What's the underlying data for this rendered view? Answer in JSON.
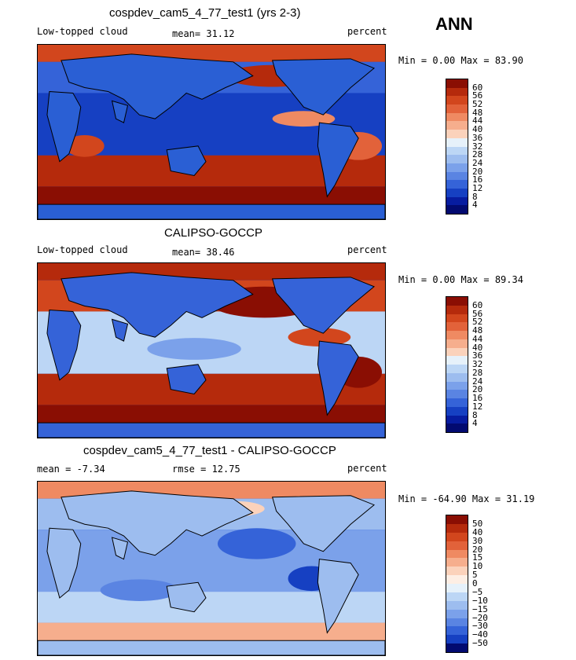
{
  "season": "ANN",
  "chart_data": [
    {
      "type": "heatmap",
      "title": "cospdev_cam5_4_77_test1 (yrs 2-3)",
      "left_label": "Low-topped cloud",
      "center_label": "mean=  31.12",
      "right_label": "percent",
      "minmax_label": "Min =   0.00 Max =  83.90",
      "mean": 31.12,
      "min": 0.0,
      "max": 83.9,
      "units": "percent",
      "contour_levels": [
        "60",
        "56",
        "52",
        "48",
        "44",
        "40",
        "36",
        "32",
        "28",
        "24",
        "20",
        "16",
        "12",
        "8",
        "4"
      ],
      "colors": [
        "#8a0e03",
        "#b52a0c",
        "#d2461d",
        "#e2623a",
        "#ef8a62",
        "#f6ae8d",
        "#fbd2bb",
        "#e6f1fa",
        "#bcd6f5",
        "#9dbdef",
        "#7ba1ea",
        "#5a84e2",
        "#3563d8",
        "#1640c2",
        "#071ca0",
        "#020a70"
      ]
    },
    {
      "type": "heatmap",
      "title": "CALIPSO-GOCCP",
      "left_label": "Low-topped cloud",
      "center_label": "mean=  38.46",
      "right_label": "percent",
      "minmax_label": "Min =   0.00 Max =  89.34",
      "mean": 38.46,
      "min": 0.0,
      "max": 89.34,
      "units": "percent",
      "contour_levels": [
        "60",
        "56",
        "52",
        "48",
        "44",
        "40",
        "36",
        "32",
        "28",
        "24",
        "20",
        "16",
        "12",
        "8",
        "4"
      ],
      "colors": [
        "#8a0e03",
        "#b52a0c",
        "#d2461d",
        "#e2623a",
        "#ef8a62",
        "#f6ae8d",
        "#fbd2bb",
        "#e6f1fa",
        "#bcd6f5",
        "#9dbdef",
        "#7ba1ea",
        "#5a84e2",
        "#3563d8",
        "#1640c2",
        "#071ca0",
        "#020a70"
      ]
    },
    {
      "type": "heatmap",
      "title": "cospdev_cam5_4_77_test1 - CALIPSO-GOCCP",
      "left_label": "mean =  -7.34",
      "center_label": "rmse =  12.75",
      "right_label": "percent",
      "minmax_label": "Min = -64.90 Max =  31.19",
      "mean": -7.34,
      "rmse": 12.75,
      "min": -64.9,
      "max": 31.19,
      "units": "percent",
      "contour_levels": [
        "50",
        "40",
        "30",
        "20",
        "15",
        "10",
        "5",
        "0",
        "−5",
        "−10",
        "−15",
        "−20",
        "−30",
        "−40",
        "−50"
      ],
      "colors": [
        "#8a0e03",
        "#b52a0c",
        "#d2461d",
        "#e2623a",
        "#ef8a62",
        "#f6ae8d",
        "#fbd2bb",
        "#fdeee4",
        "#e6f1fa",
        "#bcd6f5",
        "#9dbdef",
        "#7ba1ea",
        "#5a84e2",
        "#3563d8",
        "#1640c2",
        "#020a70"
      ]
    }
  ]
}
